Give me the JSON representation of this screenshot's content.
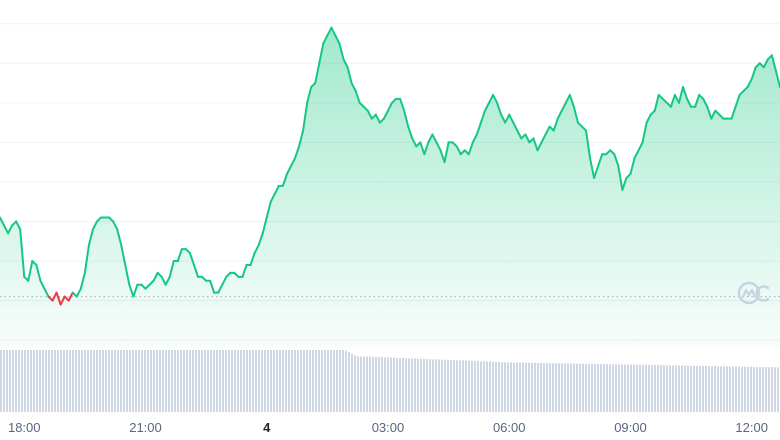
{
  "chart_data": {
    "type": "area",
    "title": "",
    "xlabel": "",
    "ylabel": "",
    "x_ticks": [
      {
        "label": "18:00",
        "hour": 0,
        "bold": false
      },
      {
        "label": "21:00",
        "hour": 3,
        "bold": false
      },
      {
        "label": "4",
        "hour": 6,
        "bold": true
      },
      {
        "label": "03:00",
        "hour": 9,
        "bold": false
      },
      {
        "label": "06:00",
        "hour": 12,
        "bold": false
      },
      {
        "label": "09:00",
        "hour": 15,
        "bold": false
      },
      {
        "label": "12:00",
        "hour": 18,
        "bold": false
      }
    ],
    "xlim": [
      -0.6,
      18.7
    ],
    "ylim": [
      18,
      106
    ],
    "baseline": 31,
    "grid": true,
    "colors": {
      "up": "#16c784",
      "down": "#ea3943",
      "volume": "#cfd6e4",
      "grid": "#eff2f5"
    },
    "series": [
      {
        "values": [
          [
            -0.6,
            51
          ],
          [
            -0.5,
            49
          ],
          [
            -0.4,
            47
          ],
          [
            -0.3,
            49
          ],
          [
            -0.2,
            50
          ],
          [
            -0.1,
            48
          ],
          [
            0.0,
            36
          ],
          [
            0.1,
            35
          ],
          [
            0.2,
            40
          ],
          [
            0.3,
            39
          ],
          [
            0.4,
            35
          ],
          [
            0.5,
            33
          ],
          [
            0.6,
            31
          ],
          [
            0.7,
            30
          ],
          [
            0.8,
            32
          ],
          [
            0.9,
            29
          ],
          [
            1.0,
            31
          ],
          [
            1.1,
            30
          ],
          [
            1.2,
            32
          ],
          [
            1.3,
            31
          ],
          [
            1.4,
            33
          ],
          [
            1.5,
            37
          ],
          [
            1.6,
            44
          ],
          [
            1.7,
            48
          ],
          [
            1.8,
            50
          ],
          [
            1.9,
            51
          ],
          [
            2.0,
            51
          ],
          [
            2.1,
            51
          ],
          [
            2.2,
            50
          ],
          [
            2.3,
            48
          ],
          [
            2.4,
            44
          ],
          [
            2.5,
            39
          ],
          [
            2.6,
            34
          ],
          [
            2.7,
            31
          ],
          [
            2.8,
            34
          ],
          [
            2.9,
            34
          ],
          [
            3.0,
            33
          ],
          [
            3.1,
            34
          ],
          [
            3.2,
            35
          ],
          [
            3.3,
            37
          ],
          [
            3.4,
            36
          ],
          [
            3.5,
            34
          ],
          [
            3.6,
            36
          ],
          [
            3.7,
            40
          ],
          [
            3.8,
            40
          ],
          [
            3.9,
            43
          ],
          [
            4.0,
            43
          ],
          [
            4.1,
            42
          ],
          [
            4.2,
            39
          ],
          [
            4.3,
            36
          ],
          [
            4.4,
            36
          ],
          [
            4.5,
            35
          ],
          [
            4.6,
            35
          ],
          [
            4.7,
            32
          ],
          [
            4.8,
            32
          ],
          [
            4.9,
            34
          ],
          [
            5.0,
            36
          ],
          [
            5.1,
            37
          ],
          [
            5.2,
            37
          ],
          [
            5.3,
            36
          ],
          [
            5.4,
            36
          ],
          [
            5.5,
            39
          ],
          [
            5.6,
            39
          ],
          [
            5.7,
            42
          ],
          [
            5.8,
            44
          ],
          [
            5.9,
            47
          ],
          [
            6.0,
            51
          ],
          [
            6.1,
            55
          ],
          [
            6.2,
            57
          ],
          [
            6.3,
            59
          ],
          [
            6.4,
            59
          ],
          [
            6.5,
            62
          ],
          [
            6.6,
            64
          ],
          [
            6.7,
            66
          ],
          [
            6.8,
            69
          ],
          [
            6.9,
            73
          ],
          [
            7.0,
            80
          ],
          [
            7.1,
            84
          ],
          [
            7.2,
            85
          ],
          [
            7.3,
            90
          ],
          [
            7.4,
            95
          ],
          [
            7.5,
            97
          ],
          [
            7.6,
            99
          ],
          [
            7.7,
            97
          ],
          [
            7.8,
            95
          ],
          [
            7.9,
            91
          ],
          [
            8.0,
            89
          ],
          [
            8.1,
            85
          ],
          [
            8.2,
            83
          ],
          [
            8.3,
            80
          ],
          [
            8.4,
            79
          ],
          [
            8.5,
            78
          ],
          [
            8.6,
            76
          ],
          [
            8.7,
            77
          ],
          [
            8.8,
            75
          ],
          [
            8.9,
            76
          ],
          [
            9.0,
            78
          ],
          [
            9.1,
            80
          ],
          [
            9.2,
            81
          ],
          [
            9.3,
            81
          ],
          [
            9.4,
            78
          ],
          [
            9.5,
            74
          ],
          [
            9.6,
            71
          ],
          [
            9.7,
            69
          ],
          [
            9.8,
            70
          ],
          [
            9.9,
            67
          ],
          [
            10.0,
            70
          ],
          [
            10.1,
            72
          ],
          [
            10.2,
            70
          ],
          [
            10.3,
            68
          ],
          [
            10.4,
            65
          ],
          [
            10.5,
            70
          ],
          [
            10.6,
            70
          ],
          [
            10.7,
            69
          ],
          [
            10.8,
            67
          ],
          [
            10.9,
            68
          ],
          [
            11.0,
            67
          ],
          [
            11.1,
            70
          ],
          [
            11.2,
            72
          ],
          [
            11.3,
            75
          ],
          [
            11.4,
            78
          ],
          [
            11.5,
            80
          ],
          [
            11.6,
            82
          ],
          [
            11.7,
            80
          ],
          [
            11.8,
            77
          ],
          [
            11.9,
            75
          ],
          [
            12.0,
            77
          ],
          [
            12.1,
            75
          ],
          [
            12.2,
            73
          ],
          [
            12.3,
            71
          ],
          [
            12.4,
            72
          ],
          [
            12.5,
            70
          ],
          [
            12.6,
            71
          ],
          [
            12.7,
            68
          ],
          [
            12.8,
            70
          ]
        ],
        "values_tail": [
          [
            12.9,
            72
          ],
          [
            13.0,
            74
          ],
          [
            13.1,
            73
          ],
          [
            13.2,
            76
          ],
          [
            13.3,
            78
          ],
          [
            13.4,
            80
          ],
          [
            13.5,
            82
          ],
          [
            13.6,
            79
          ],
          [
            13.7,
            75
          ],
          [
            13.8,
            74
          ],
          [
            13.9,
            73
          ],
          [
            14.0,
            66
          ],
          [
            14.1,
            61
          ],
          [
            14.2,
            64
          ],
          [
            14.3,
            67
          ],
          [
            14.4,
            67
          ],
          [
            14.5,
            68
          ],
          [
            14.6,
            67
          ],
          [
            14.7,
            64
          ],
          [
            14.8,
            58
          ],
          [
            14.9,
            61
          ],
          [
            15.0,
            62
          ],
          [
            15.1,
            66
          ],
          [
            15.2,
            68
          ],
          [
            15.3,
            70
          ],
          [
            15.4,
            75
          ],
          [
            15.5,
            77
          ],
          [
            15.6,
            78
          ],
          [
            15.7,
            82
          ],
          [
            15.8,
            81
          ],
          [
            15.9,
            80
          ],
          [
            16.0,
            79
          ],
          [
            16.1,
            82
          ],
          [
            16.2,
            80
          ],
          [
            16.3,
            84
          ],
          [
            16.4,
            81
          ],
          [
            16.5,
            79
          ],
          [
            16.6,
            79
          ],
          [
            16.7,
            82
          ],
          [
            16.8,
            81
          ],
          [
            16.9,
            79
          ],
          [
            17.0,
            76
          ],
          [
            17.1,
            78
          ],
          [
            17.2,
            77
          ],
          [
            17.3,
            76
          ],
          [
            17.4,
            76
          ],
          [
            17.5,
            76
          ],
          [
            17.6,
            79
          ],
          [
            17.7,
            82
          ],
          [
            17.8,
            83
          ],
          [
            17.9,
            84
          ],
          [
            18.0,
            86
          ],
          [
            18.1,
            89
          ],
          [
            18.2,
            90
          ],
          [
            18.3,
            89
          ],
          [
            18.4,
            91
          ],
          [
            18.5,
            92
          ],
          [
            18.6,
            88
          ],
          [
            18.7,
            84
          ]
        ]
      }
    ],
    "volume": {
      "ylim": [
        0,
        100
      ],
      "segments": [
        {
          "x0": -0.6,
          "x1": 7.9,
          "start": 100,
          "end": 100
        },
        {
          "x0": 7.9,
          "x1": 8.2,
          "start": 100,
          "end": 90
        },
        {
          "x0": 8.2,
          "x1": 12.0,
          "start": 90,
          "end": 80
        },
        {
          "x0": 12.0,
          "x1": 18.7,
          "start": 80,
          "end": 72
        }
      ]
    }
  }
}
